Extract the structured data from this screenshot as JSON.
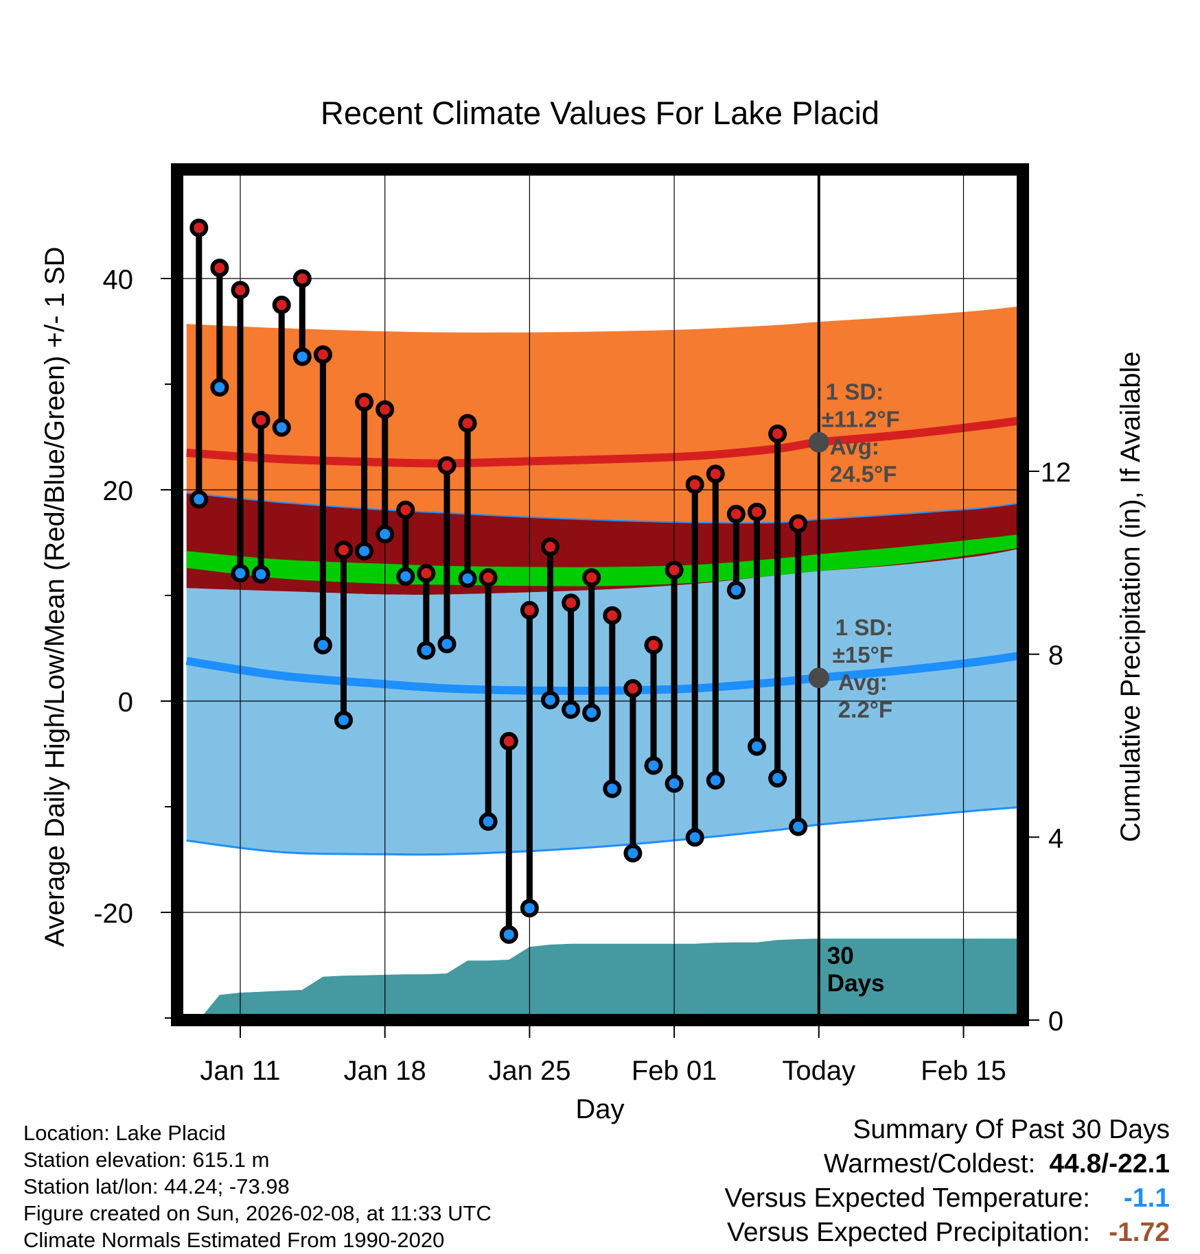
{
  "chart_data": {
    "type": "line",
    "title": "Recent Climate Values For Lake Placid",
    "xlabel": "Day",
    "ylabel": "Average Daily High/Low/Mean (Red/Blue/Green) +/- 1 SD",
    "y2label": "Cumulative Precipitation (in), If Available",
    "xlim": [
      -2.6,
      38.6
    ],
    "ylim": [
      -30,
      50
    ],
    "y2lim": [
      0,
      18.6
    ],
    "x_ticks": [
      {
        "x": 0,
        "label": "Jan 11"
      },
      {
        "x": 7,
        "label": "Jan 18"
      },
      {
        "x": 14,
        "label": "Jan 25"
      },
      {
        "x": 21,
        "label": "Feb 01"
      },
      {
        "x": 28,
        "label": "Today"
      },
      {
        "x": 35,
        "label": "Feb 15"
      }
    ],
    "y_ticks": [
      -20,
      0,
      20,
      40
    ],
    "y_minor_ticks": [
      -30,
      -10,
      10,
      30
    ],
    "y2_ticks": [
      0,
      4,
      8,
      12
    ],
    "grid": true,
    "today_x": 28,
    "normals": {
      "x": [
        -2.6,
        2,
        7,
        10,
        14,
        18,
        22,
        26,
        28,
        32,
        36,
        38.6
      ],
      "high_mean": [
        23.5,
        22.9,
        22.6,
        22.5,
        22.7,
        22.9,
        23.2,
        23.9,
        24.5,
        25.2,
        26.1,
        26.8
      ],
      "high_upper": [
        35.7,
        35.3,
        35.0,
        34.9,
        34.9,
        35.0,
        35.2,
        35.6,
        35.9,
        36.4,
        37.0,
        37.6
      ],
      "high_lower": [
        19.7,
        18.8,
        18.1,
        17.8,
        17.4,
        17.1,
        16.9,
        16.9,
        17.2,
        17.7,
        18.3,
        19.0
      ],
      "mean_upper": [
        14.2,
        13.4,
        13.0,
        12.8,
        12.7,
        12.7,
        12.9,
        13.5,
        13.9,
        14.6,
        15.4,
        16.0
      ],
      "mean_lower": [
        12.6,
        11.6,
        11.1,
        11.0,
        10.9,
        10.9,
        11.2,
        11.9,
        12.3,
        13.0,
        14.0,
        14.8
      ],
      "low_upper": [
        10.7,
        10.4,
        10.1,
        10.1,
        10.3,
        10.6,
        11.1,
        11.9,
        12.3,
        12.9,
        13.8,
        14.8
      ],
      "low_mean": [
        3.8,
        2.4,
        1.6,
        1.2,
        1.0,
        1.0,
        1.2,
        1.8,
        2.2,
        2.9,
        3.8,
        4.6
      ],
      "low_lower": [
        -13.2,
        -14.3,
        -14.5,
        -14.5,
        -14.2,
        -13.7,
        -13.0,
        -12.2,
        -11.7,
        -11.0,
        -10.3,
        -9.9
      ]
    },
    "high_sd_label": {
      "line1": "1 SD:",
      "line2": "±11.2°F",
      "line3": "Avg:",
      "line4": "24.5°F",
      "avg": 24.5
    },
    "low_sd_label": {
      "line1": "1 SD:",
      "line2": "±15°F",
      "line3": "Avg:",
      "line4": "2.2°F",
      "avg": 2.2
    },
    "days": [
      {
        "x": -2,
        "high": 44.8,
        "low": 19.1
      },
      {
        "x": -1,
        "high": 41.0,
        "low": 29.7
      },
      {
        "x": 0,
        "high": 38.9,
        "low": 12.1
      },
      {
        "x": 1,
        "high": 26.6,
        "low": 12.0
      },
      {
        "x": 2,
        "high": 37.5,
        "low": 25.9
      },
      {
        "x": 3,
        "high": 40.0,
        "low": 32.6
      },
      {
        "x": 4,
        "high": 32.8,
        "low": 5.3
      },
      {
        "x": 5,
        "high": 14.3,
        "low": -1.8
      },
      {
        "x": 6,
        "high": 28.3,
        "low": 14.2
      },
      {
        "x": 7,
        "high": 27.6,
        "low": 15.8
      },
      {
        "x": 8,
        "high": 18.1,
        "low": 11.8
      },
      {
        "x": 9,
        "high": 12.1,
        "low": 4.8
      },
      {
        "x": 10,
        "high": 22.3,
        "low": 5.4
      },
      {
        "x": 11,
        "high": 26.3,
        "low": 11.6
      },
      {
        "x": 12,
        "high": 11.7,
        "low": -11.4
      },
      {
        "x": 13,
        "high": -3.8,
        "low": -22.1
      },
      {
        "x": 14,
        "high": 8.6,
        "low": -19.6
      },
      {
        "x": 15,
        "high": 14.6,
        "low": 0.1
      },
      {
        "x": 16,
        "high": 9.3,
        "low": -0.8
      },
      {
        "x": 17,
        "high": 11.7,
        "low": -1.1
      },
      {
        "x": 18,
        "high": 8.1,
        "low": -8.3
      },
      {
        "x": 19,
        "high": 1.2,
        "low": -14.4
      },
      {
        "x": 20,
        "high": 5.3,
        "low": -6.1
      },
      {
        "x": 21,
        "high": 12.4,
        "low": -7.8
      },
      {
        "x": 22,
        "high": 20.5,
        "low": -12.9
      },
      {
        "x": 23,
        "high": 21.5,
        "low": -7.5
      },
      {
        "x": 24,
        "high": 17.7,
        "low": 10.5
      },
      {
        "x": 25,
        "high": 17.9,
        "low": -4.3
      },
      {
        "x": 26,
        "high": 25.3,
        "low": -7.3
      },
      {
        "x": 27,
        "high": 16.8,
        "low": -11.9
      }
    ],
    "precip": {
      "label_line1": "30",
      "label_line2": "Days",
      "x": [
        -2,
        -1,
        0,
        1,
        2,
        3,
        4,
        5,
        6,
        7,
        8,
        9,
        10,
        11,
        12,
        13,
        14,
        15,
        16,
        17,
        18,
        19,
        20,
        21,
        22,
        23,
        24,
        25,
        26,
        27,
        28,
        38.6
      ],
      "cum": [
        0.0,
        0.55,
        0.6,
        0.62,
        0.64,
        0.66,
        0.95,
        0.97,
        0.98,
        0.99,
        1.0,
        1.0,
        1.02,
        1.3,
        1.3,
        1.32,
        1.6,
        1.65,
        1.67,
        1.67,
        1.67,
        1.67,
        1.67,
        1.67,
        1.67,
        1.69,
        1.7,
        1.7,
        1.75,
        1.77,
        1.78,
        1.78
      ]
    },
    "colors": {
      "high_band": "#f57b30",
      "high_mean": "#d62020",
      "low_band": "#82c1e6",
      "low_mean": "#1e8fff",
      "overlap_band": "#8e0e14",
      "mean_band": "#00cc00",
      "high_marker": "#d62020",
      "low_marker": "#1e8fff",
      "precip_fill": "#449aa0",
      "sd_marker": "#4a4a4a"
    }
  },
  "footer": {
    "location": "Location: Lake Placid",
    "elevation": "Station elevation: 615.1 m",
    "latlon": "Station lat/lon: 44.24; -73.98",
    "created": "Figure created on Sun, 2026-02-08, at 11:33 UTC",
    "normals": "Climate Normals Estimated From 1990-2020"
  },
  "summary": {
    "heading": "Summary Of Past 30 Days",
    "warm_cold_label": "Warmest/Coldest:",
    "warm_cold_value": "44.8/-22.1",
    "temp_label": "Versus Expected Temperature:",
    "temp_value": "-1.1",
    "temp_color": "#1e8fff",
    "precip_label": "Versus Expected Precipitation:",
    "precip_value": "-1.72",
    "precip_color": "#a0522d"
  }
}
